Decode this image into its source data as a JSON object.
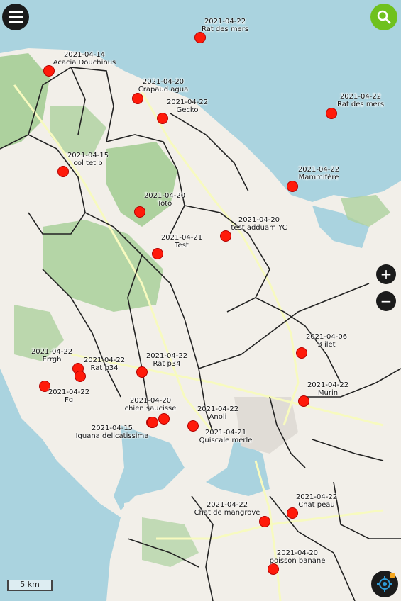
{
  "map": {
    "colors": {
      "sea": "#aad3df",
      "land": "#f2efe9",
      "forest": "#add19e",
      "border": "#222222",
      "road": "#f7fabf",
      "marker": "#ff1a0a"
    },
    "scale_label": "5 km",
    "markers": [
      {
        "date": "2021-04-22",
        "name": "Rat des mers"
      },
      {
        "date": "2021-04-14",
        "name": "Acacia Douchinus"
      },
      {
        "date": "2021-04-20",
        "name": "Crapaud agua"
      },
      {
        "date": "2021-04-22",
        "name": "Rat des mers"
      },
      {
        "date": "2021-04-22",
        "name": "Gecko"
      },
      {
        "date": "2021-04-15",
        "name": "col tet b"
      },
      {
        "date": "2021-04-22",
        "name": "Mammifère"
      },
      {
        "date": "2021-04-20",
        "name": "Toto"
      },
      {
        "date": "2021-04-20",
        "name": "test adduam YC"
      },
      {
        "date": "2021-04-21",
        "name": "Test"
      },
      {
        "date": "2021-04-06",
        "name": "3 ilet"
      },
      {
        "date": "2021-04-22",
        "name": "Errgh"
      },
      {
        "date": "2021-04-22",
        "name": "Rat p34"
      },
      {
        "date": "2021-04-22",
        "name": "Rat p34"
      },
      {
        "date": "2021-04-22",
        "name": "Fg"
      },
      {
        "date": "2021-04-22",
        "name": "Murin"
      },
      {
        "date": "2021-04-20",
        "name": "chien saucisse"
      },
      {
        "date": "2021-04-22",
        "name": "Anoli"
      },
      {
        "date": "2021-04-15",
        "name": "Iguana delicatissima"
      },
      {
        "date": "2021-04-21",
        "name": "Quiscale merle"
      },
      {
        "date": "2021-04-22",
        "name": "Chat peau"
      },
      {
        "date": "2021-04-22",
        "name": "Chat de mangrove"
      },
      {
        "date": "2021-04-20",
        "name": "poisson banane"
      }
    ]
  },
  "controls": {
    "menu_icon": "menu-icon",
    "search_icon": "search-icon",
    "zoom_in_label": "+",
    "zoom_out_label": "−",
    "locate_icon": "crosshair-icon"
  }
}
